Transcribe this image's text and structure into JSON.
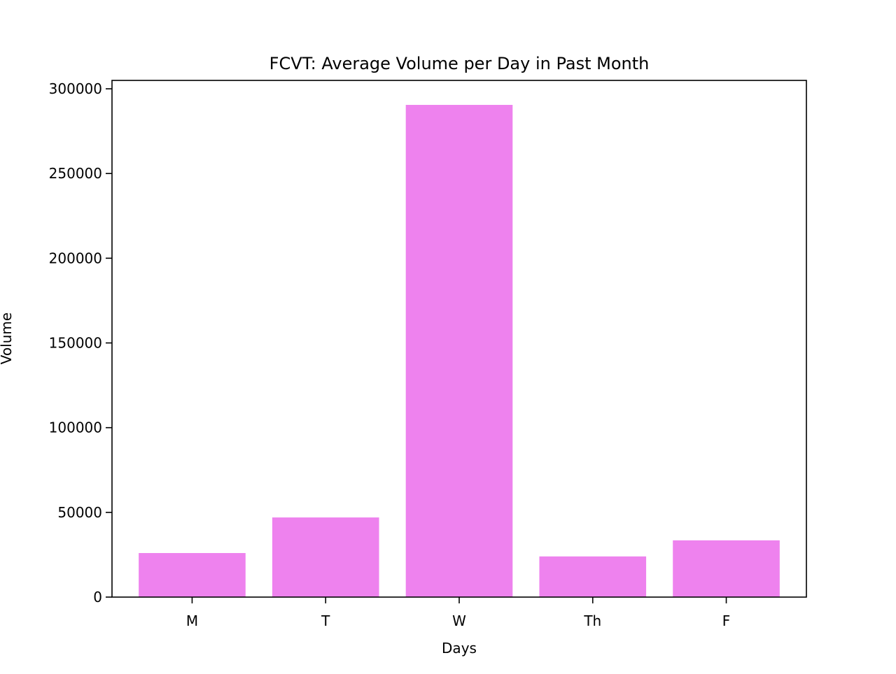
{
  "chart_data": {
    "type": "bar",
    "title": "FCVT: Average Volume per Day in Past Month",
    "xlabel": "Days",
    "ylabel": "Volume",
    "categories": [
      "M",
      "T",
      "W",
      "Th",
      "F"
    ],
    "values": [
      26000,
      47000,
      290500,
      24000,
      33500
    ],
    "ylim": [
      0,
      300000
    ],
    "yticks": [
      0,
      50000,
      100000,
      150000,
      200000,
      250000,
      300000
    ],
    "ytick_labels": [
      "0",
      "50000",
      "100000",
      "150000",
      "200000",
      "250000",
      "300000"
    ],
    "grid": false,
    "bar_color": "#ee82ee"
  }
}
